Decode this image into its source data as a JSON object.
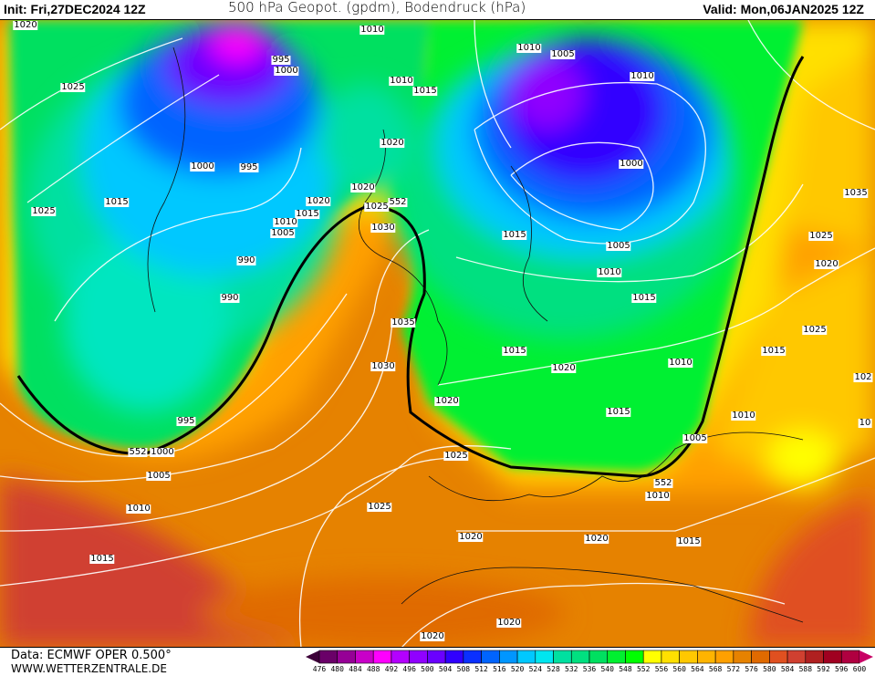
{
  "header": {
    "init": "Init: Fri,27DEC2024 12Z",
    "title": "500 hPa Geopot. (gpdm), Bodendruck (hPa)",
    "valid": "Valid: Mon,06JAN2025 12Z"
  },
  "footer": {
    "source": "Data: ECMWF OPER 0.500°",
    "website": "WWW.WETTERZENTRALE.DE"
  },
  "isobar_labels": [
    "1020",
    "1025",
    "1000",
    "995",
    "995",
    "1000",
    "1010",
    "1010",
    "1005",
    "1010",
    "1015",
    "1010",
    "1020",
    "1000",
    "1015",
    "1025",
    "1020",
    "1020",
    "552",
    "1025",
    "1015",
    "1010",
    "1005",
    "1030",
    "990",
    "1015",
    "1005",
    "1010",
    "1035",
    "1025",
    "1020",
    "990",
    "1015",
    "1035",
    "1025",
    "1015",
    "1015",
    "1030",
    "1020",
    "1010",
    "102",
    "1020",
    "1015",
    "1010",
    "10",
    "995",
    "1005",
    "552",
    "1000",
    "1025",
    "1005",
    "552",
    "1010",
    "1010",
    "1025",
    "1020",
    "1020",
    "1015",
    "1015",
    "1020",
    "1020"
  ],
  "colorbar": {
    "labels": [
      "476",
      "480",
      "484",
      "488",
      "492",
      "496",
      "500",
      "504",
      "508",
      "512",
      "516",
      "520",
      "524",
      "528",
      "532",
      "536",
      "540",
      "548",
      "552",
      "556",
      "560",
      "564",
      "568",
      "572",
      "576",
      "580",
      "584",
      "588",
      "592",
      "596",
      "600"
    ],
    "colors": [
      "#3c0038",
      "#6a0068",
      "#960096",
      "#c800c8",
      "#ff00ff",
      "#b400ff",
      "#9000ff",
      "#6a00ff",
      "#3000ff",
      "#0a30ff",
      "#0064ff",
      "#0096ff",
      "#00c8ff",
      "#00e6f0",
      "#00e0a0",
      "#00e080",
      "#00e060",
      "#00f030",
      "#00ff00",
      "#ffff00",
      "#ffe000",
      "#ffc800",
      "#ffb400",
      "#ffa000",
      "#e68200",
      "#e06a00",
      "#e05020",
      "#d04030",
      "#b02020",
      "#a00020",
      "#b00040",
      "#c80064"
    ]
  }
}
